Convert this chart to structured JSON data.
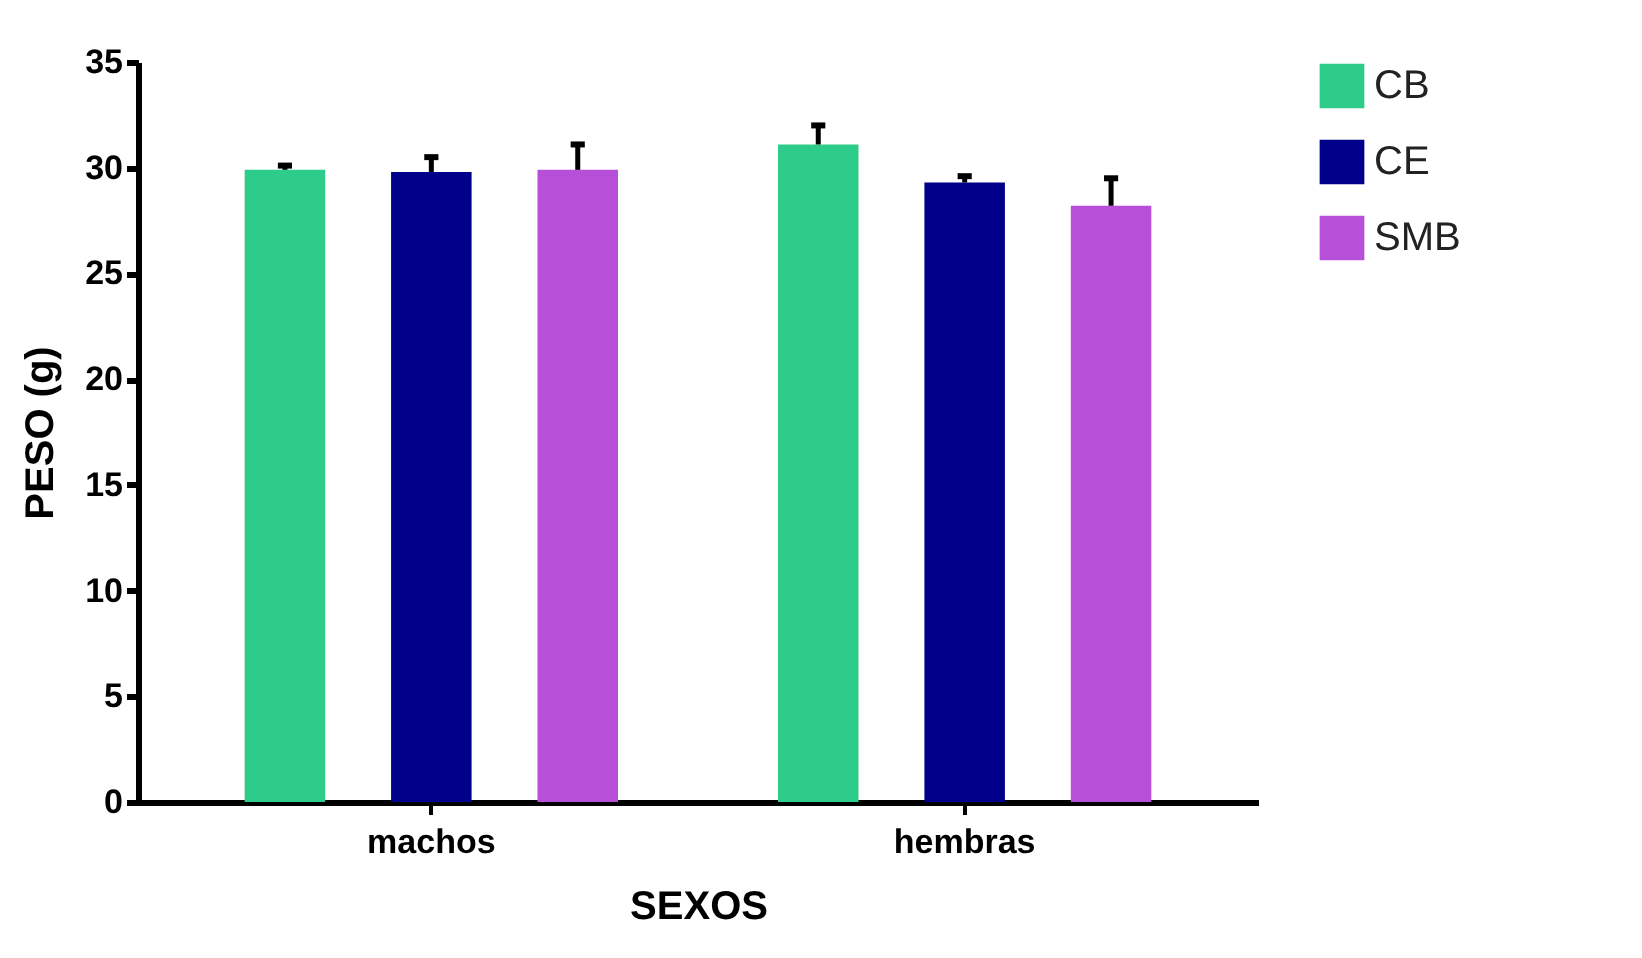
{
  "chart_data": {
    "type": "bar",
    "xlabel": "SEXOS",
    "ylabel": "PESO (g)",
    "categories": [
      "machos",
      "hembras"
    ],
    "series": [
      {
        "name": "CB",
        "color": "#2ecc8a",
        "values": [
          29.9,
          31.1
        ],
        "errors": [
          0.2,
          0.9
        ]
      },
      {
        "name": "CE",
        "color": "#00008b",
        "values": [
          29.8,
          29.3
        ],
        "errors": [
          0.7,
          0.3
        ]
      },
      {
        "name": "SMB",
        "color": "#b84fd8",
        "values": [
          29.9,
          28.2
        ],
        "errors": [
          1.2,
          1.3
        ]
      }
    ],
    "ylim": [
      0,
      35
    ],
    "yticks": [
      0,
      5,
      10,
      15,
      20,
      25,
      30,
      35
    ],
    "grid": false,
    "legend": "right"
  }
}
